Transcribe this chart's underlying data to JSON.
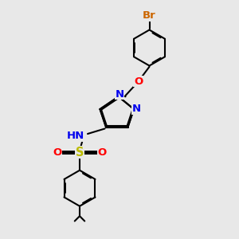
{
  "bg_color": "#e8e8e8",
  "bond_color": "#000000",
  "bond_width": 1.5,
  "dbo": 0.06,
  "atom_colors": {
    "Br": "#cc6600",
    "O": "#ff0000",
    "N": "#0000ee",
    "S": "#bbbb00",
    "H": "#888888"
  },
  "fs": 9.5,
  "fig_size": [
    3.0,
    3.0
  ],
  "dpi": 100,
  "xlim": [
    0,
    10
  ],
  "ylim": [
    0,
    12
  ]
}
